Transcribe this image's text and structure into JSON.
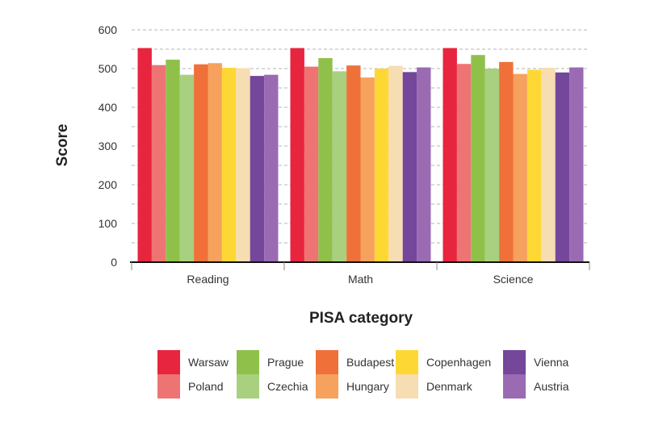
{
  "chart_data": {
    "type": "bar",
    "title": "",
    "xlabel": "PISA category",
    "ylabel": "Score",
    "ylim": [
      0,
      600
    ],
    "yticks": [
      0,
      100,
      200,
      300,
      400,
      500,
      600
    ],
    "grid": true,
    "legend_position": "bottom",
    "categories": [
      "Reading",
      "Math",
      "Science"
    ],
    "series": [
      {
        "name": "Warsaw",
        "color": "#e8253f",
        "values": [
          553,
          553,
          553
        ]
      },
      {
        "name": "Poland",
        "color": "#ee7474",
        "values": [
          509,
          505,
          512
        ]
      },
      {
        "name": "Prague",
        "color": "#8fc14a",
        "values": [
          523,
          527,
          535
        ]
      },
      {
        "name": "Czechia",
        "color": "#a8d07e",
        "values": [
          484,
          493,
          500
        ]
      },
      {
        "name": "Budapest",
        "color": "#f0703a",
        "values": [
          511,
          508,
          517
        ]
      },
      {
        "name": "Hungary",
        "color": "#f6a15d",
        "values": [
          514,
          477,
          486
        ]
      },
      {
        "name": "Copenhagen",
        "color": "#fdd835",
        "values": [
          502,
          500,
          497
        ]
      },
      {
        "name": "Denmark",
        "color": "#f7ddb2",
        "values": [
          501,
          507,
          502
        ]
      },
      {
        "name": "Vienna",
        "color": "#74479a",
        "values": [
          481,
          491,
          490
        ]
      },
      {
        "name": "Austria",
        "color": "#9a6bb3",
        "values": [
          484,
          503,
          503
        ]
      }
    ]
  }
}
